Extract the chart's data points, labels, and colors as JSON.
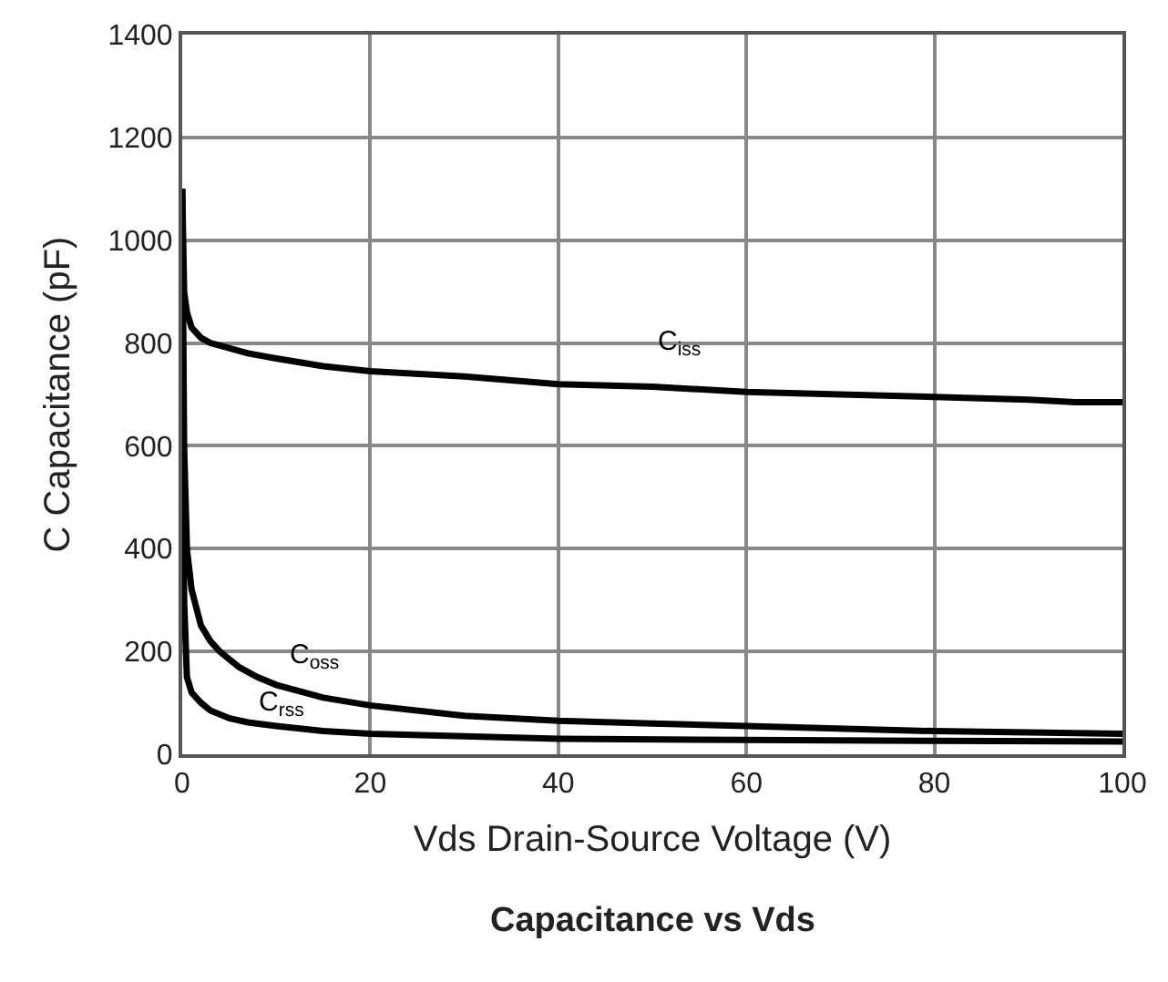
{
  "chart_data": {
    "type": "line",
    "title": "Capacitance vs Vds",
    "xlabel": "Vds Drain-Source Voltage (V)",
    "ylabel": "C Capacitance (pF)",
    "xlim": [
      0,
      100
    ],
    "xticks": [
      0,
      20,
      40,
      60,
      80,
      100
    ],
    "ylim": [
      0,
      1400
    ],
    "yticks": [
      0,
      200,
      400,
      600,
      800,
      1000,
      1200,
      1400
    ],
    "grid": true,
    "legend": false,
    "marker": "none",
    "line_style": "solid",
    "series": [
      {
        "name": "C$_{iss}$",
        "color": "#000000",
        "x": [
          0,
          0.2,
          0.5,
          1,
          2,
          3,
          5,
          7,
          10,
          15,
          20,
          30,
          40,
          50,
          60,
          70,
          80,
          90,
          95,
          100
        ],
        "values": [
          1100,
          900,
          860,
          830,
          810,
          800,
          790,
          780,
          770,
          755,
          745,
          735,
          720,
          715,
          705,
          700,
          695,
          690,
          685,
          685
        ]
      },
      {
        "name": "C$_{oss}$",
        "color": "#000000",
        "x": [
          0,
          0.2,
          0.5,
          1,
          2,
          3,
          4,
          6,
          8,
          10,
          15,
          20,
          30,
          40,
          50,
          60,
          80,
          100
        ],
        "values": [
          1100,
          600,
          400,
          320,
          250,
          220,
          200,
          170,
          150,
          135,
          110,
          95,
          75,
          65,
          60,
          55,
          45,
          40
        ]
      },
      {
        "name": "C$_{rss}$",
        "color": "#000000",
        "x": [
          0,
          0.2,
          0.5,
          1,
          2,
          3,
          5,
          7,
          10,
          15,
          20,
          30,
          40,
          60,
          80,
          100
        ],
        "values": [
          1000,
          300,
          150,
          120,
          100,
          85,
          70,
          62,
          55,
          45,
          40,
          35,
          30,
          28,
          26,
          25
        ]
      }
    ]
  }
}
